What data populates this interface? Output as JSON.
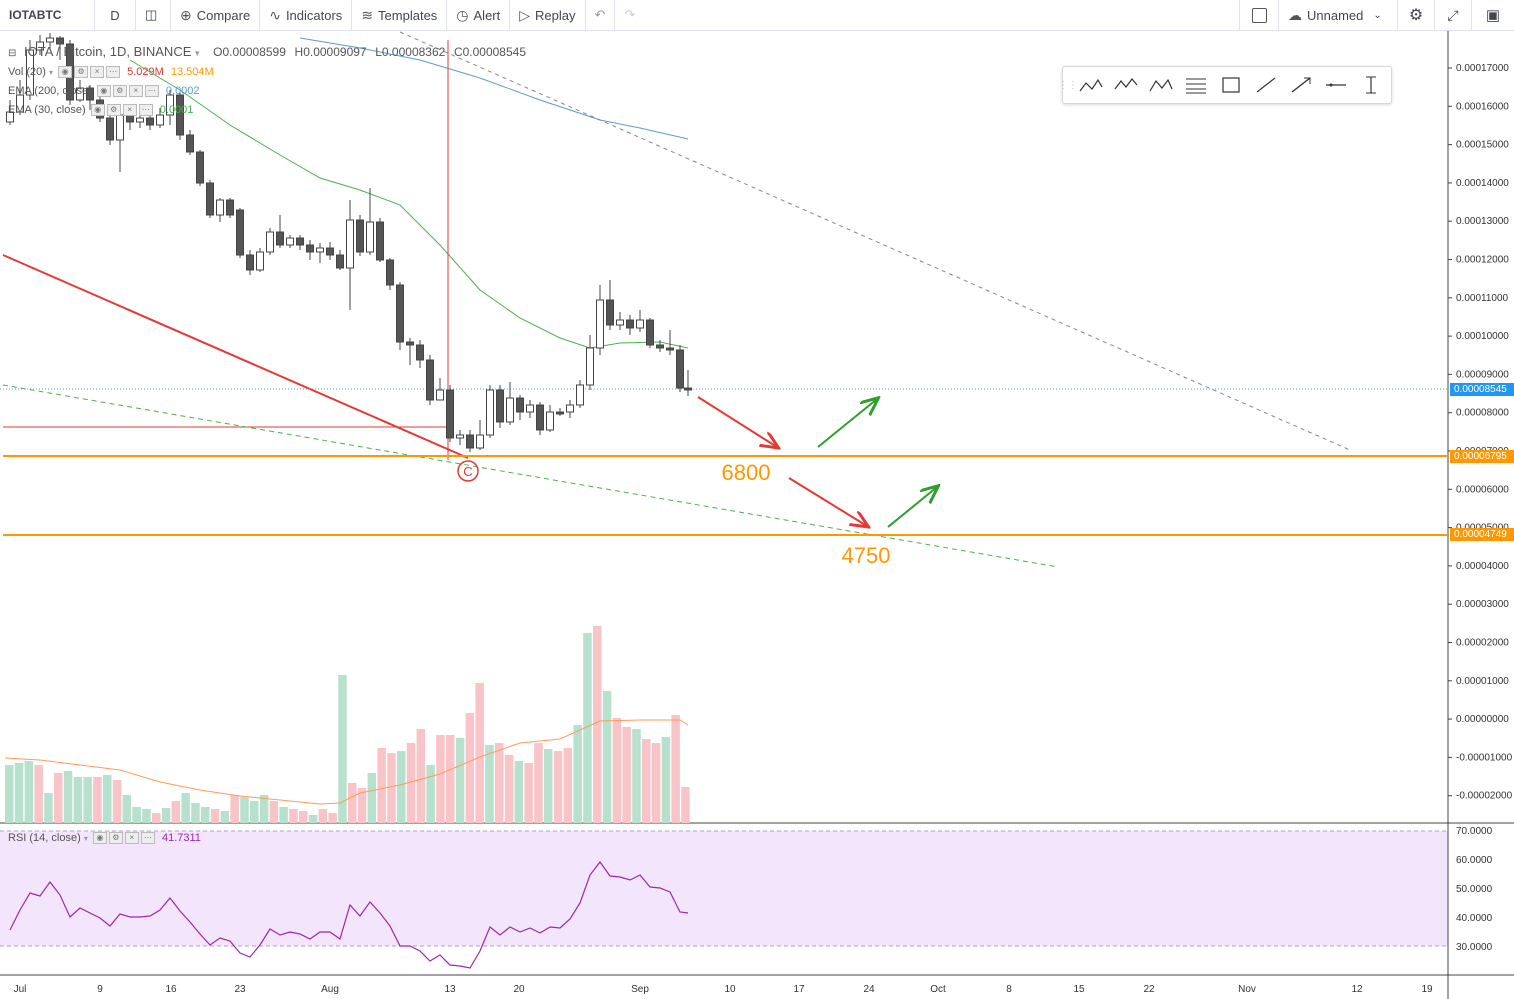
{
  "toolbar": {
    "symbol": "IOTABTC",
    "interval": "D",
    "compare": "Compare",
    "indicators": "Indicators",
    "templates": "Templates",
    "alert": "Alert",
    "replay": "Replay",
    "layout_name": "Unnamed"
  },
  "legend": {
    "title": "IOTA / Bitcoin, 1D, BINANCE",
    "open": "O0.00008599",
    "high": "H0.00009097",
    "low": "L0.00008362",
    "close": "C0.00008545",
    "vol_label": "Vol (20)",
    "vol_value": "5.029M",
    "vol_ma_value": "13.504M",
    "ema200_label": "EMA (200, close)",
    "ema200_value": "0.0002",
    "ema30_label": "EMA (30, close)",
    "ema30_value": "0.0001",
    "rsi_label": "RSI (14, close)",
    "rsi_value": "41.7311"
  },
  "price_axis": [
    "0.00017000",
    "0.00016000",
    "0.00015000",
    "0.00014000",
    "0.00013000",
    "0.00012000",
    "0.00011000",
    "0.00010000",
    "0.00009000",
    "0.00008000",
    "0.00007000",
    "0.00006000",
    "0.00005000",
    "0.00004000",
    "0.00003000",
    "0.00002000",
    "0.00001000",
    "0.00000000",
    "-0.00001000",
    "-0.00002000"
  ],
  "rsi_axis": [
    "70.0000",
    "60.0000",
    "50.0000",
    "40.0000",
    "30.0000"
  ],
  "time_axis": [
    "Jul",
    "9",
    "16",
    "23",
    "Aug",
    "13",
    "20",
    "Sep",
    "10",
    "17",
    "24",
    "Oct",
    "8",
    "15",
    "22",
    "Nov",
    "12",
    "19"
  ],
  "price_tags": {
    "last": "0.00008545",
    "level_high": "0.00006795",
    "level_low": "0.00004749"
  },
  "annotations": {
    "target_high": "6800",
    "target_low": "4750",
    "wave_marker": "C"
  },
  "colors": {
    "up": "#ffffff",
    "down": "#555555",
    "ema30": "#4caf50",
    "ema200": "#5b9bd5",
    "level": "#ff9800",
    "arrow_down": "#e53935",
    "arrow_up": "#2e9e2e",
    "vol_up": "#b7e1cd",
    "vol_down": "#f8c4c8",
    "rsi_bg": "#f3e5fb",
    "rsi_line": "#9c27b0"
  }
}
